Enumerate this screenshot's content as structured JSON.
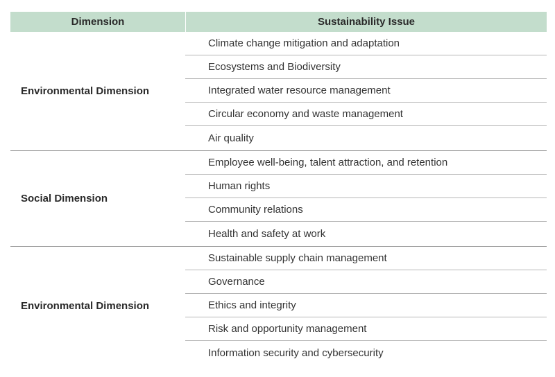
{
  "header": {
    "dimension": "Dimension",
    "issue": "Sustainability Issue"
  },
  "groups": [
    {
      "dimension": "Environmental Dimension",
      "issues": [
        "Climate change mitigation and adaptation",
        "Ecosystems and Biodiversity",
        "Integrated water resource management",
        "Circular economy and waste management",
        "Air quality"
      ]
    },
    {
      "dimension": "Social Dimension",
      "issues": [
        "Employee well-being, talent attraction, and retention",
        "Human rights",
        "Community relations",
        "Health and safety at work"
      ]
    },
    {
      "dimension": "Environmental Dimension",
      "issues": [
        "Sustainable supply chain management",
        "Governance",
        "Ethics and integrity",
        "Risk and opportunity management",
        "Information security and cybersecurity"
      ]
    }
  ]
}
